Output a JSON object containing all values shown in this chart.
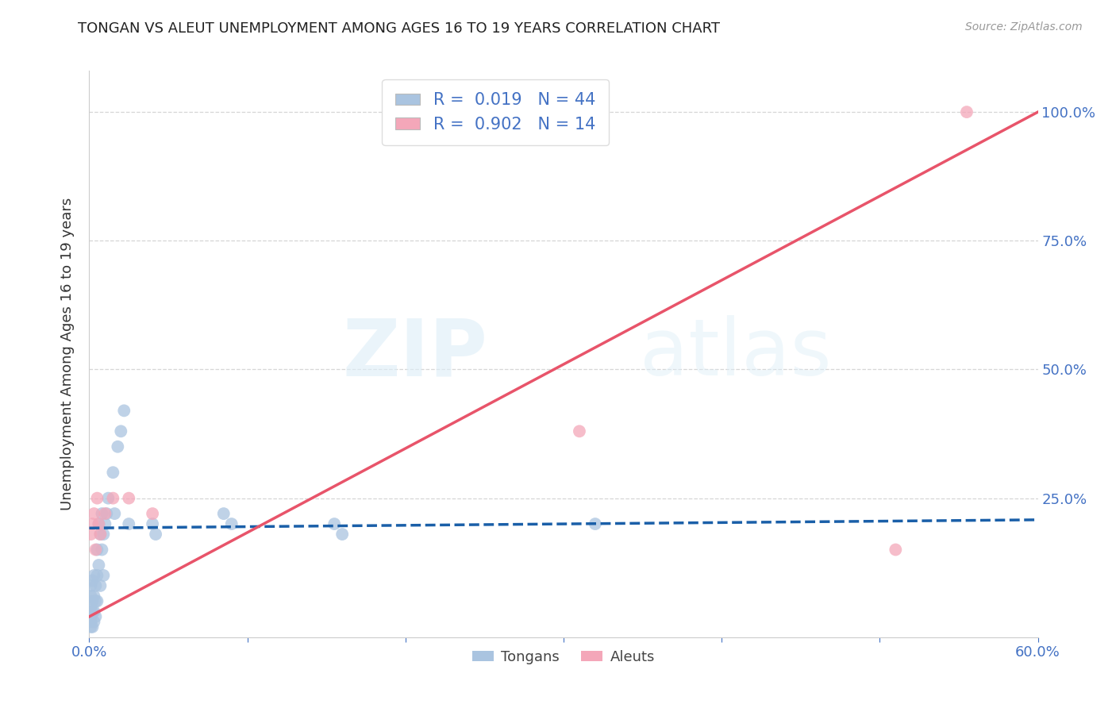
{
  "title": "TONGAN VS ALEUT UNEMPLOYMENT AMONG AGES 16 TO 19 YEARS CORRELATION CHART",
  "source": "Source: ZipAtlas.com",
  "ylabel": "Unemployment Among Ages 16 to 19 years",
  "xlim": [
    0.0,
    0.6
  ],
  "ylim": [
    -0.02,
    1.08
  ],
  "tongan_R": 0.019,
  "tongan_N": 44,
  "aleut_R": 0.902,
  "aleut_N": 14,
  "tongan_color": "#aac4e0",
  "aleut_color": "#f4a7b9",
  "tongan_line_color": "#1a5fa8",
  "aleut_line_color": "#e8546a",
  "background_color": "#ffffff",
  "grid_color": "#cccccc",
  "tick_color": "#4472c4",
  "tongan_x": [
    0.001,
    0.001,
    0.001,
    0.001,
    0.001,
    0.001,
    0.002,
    0.002,
    0.002,
    0.002,
    0.003,
    0.003,
    0.003,
    0.003,
    0.004,
    0.004,
    0.004,
    0.005,
    0.005,
    0.005,
    0.006,
    0.006,
    0.007,
    0.007,
    0.008,
    0.008,
    0.009,
    0.009,
    0.01,
    0.011,
    0.012,
    0.015,
    0.016,
    0.018,
    0.02,
    0.022,
    0.025,
    0.04,
    0.042,
    0.085,
    0.09,
    0.155,
    0.16,
    0.32
  ],
  "tongan_y": [
    0.0,
    0.01,
    0.02,
    0.04,
    0.06,
    0.08,
    0.0,
    0.03,
    0.05,
    0.09,
    0.01,
    0.03,
    0.06,
    0.1,
    0.02,
    0.05,
    0.08,
    0.05,
    0.1,
    0.15,
    0.12,
    0.2,
    0.08,
    0.18,
    0.15,
    0.22,
    0.1,
    0.18,
    0.2,
    0.22,
    0.25,
    0.3,
    0.22,
    0.35,
    0.38,
    0.42,
    0.2,
    0.2,
    0.18,
    0.22,
    0.2,
    0.2,
    0.18,
    0.2
  ],
  "aleut_x": [
    0.001,
    0.002,
    0.003,
    0.004,
    0.005,
    0.006,
    0.007,
    0.01,
    0.015,
    0.025,
    0.04,
    0.31,
    0.51,
    0.555
  ],
  "aleut_y": [
    0.18,
    0.2,
    0.22,
    0.15,
    0.25,
    0.2,
    0.18,
    0.22,
    0.25,
    0.25,
    0.22,
    0.38,
    0.15,
    1.0
  ],
  "tongan_trend_x": [
    0.0,
    0.6
  ],
  "tongan_trend_y": [
    0.192,
    0.208
  ],
  "aleut_trend_x": [
    0.0,
    0.6
  ],
  "aleut_trend_y": [
    0.02,
    1.0
  ]
}
